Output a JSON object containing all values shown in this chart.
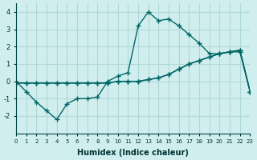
{
  "xlabel": "Humidex (Indice chaleur)",
  "ylabel": "",
  "bg_color": "#d0eeee",
  "grid_color": "#b0d8d8",
  "line_color": "#006666",
  "curve1_x": [
    0,
    1,
    2,
    3,
    4,
    5,
    6,
    7,
    8,
    9,
    10,
    11,
    12,
    13,
    14,
    15,
    16,
    17,
    18,
    19,
    20,
    21,
    22,
    23
  ],
  "curve1_y": [
    0.0,
    -0.6,
    -1.2,
    -1.7,
    -2.2,
    -1.3,
    -1.0,
    -1.0,
    -0.9,
    0.0,
    0.3,
    0.5,
    3.2,
    4.0,
    3.5,
    3.6,
    3.2,
    2.7,
    2.2,
    1.6,
    1.6,
    1.7,
    1.7,
    -0.6
  ],
  "curve2_x": [
    0,
    1,
    2,
    3,
    4,
    5,
    6,
    7,
    8,
    9,
    10,
    11,
    12,
    13,
    14,
    15,
    16,
    17,
    18,
    19,
    20,
    21,
    22,
    23
  ],
  "curve2_y": [
    -0.1,
    -0.1,
    -0.1,
    -0.1,
    -0.1,
    -0.1,
    -0.1,
    -0.1,
    -0.1,
    -0.1,
    0.0,
    0.0,
    0.0,
    0.1,
    0.2,
    0.4,
    0.7,
    1.0,
    1.2,
    1.4,
    1.6,
    1.7,
    1.8,
    -0.6
  ],
  "curve3_x": [
    0,
    1,
    2,
    3,
    4,
    5,
    6,
    7,
    8,
    9,
    10,
    11,
    12,
    13,
    14,
    15,
    16,
    17,
    18,
    19,
    20,
    21,
    22,
    23
  ],
  "curve3_y": [
    -0.1,
    -0.1,
    -0.1,
    -0.1,
    -0.1,
    -0.1,
    -0.1,
    -0.1,
    -0.1,
    -0.1,
    0.0,
    0.0,
    0.0,
    0.1,
    0.2,
    0.4,
    0.7,
    1.0,
    1.2,
    1.4,
    1.6,
    1.7,
    1.8,
    -0.6
  ],
  "xmin": 0,
  "xmax": 23,
  "ymin": -3,
  "ymax": 4.5,
  "yticks": [
    -2,
    -1,
    0,
    1,
    2,
    3,
    4
  ],
  "xticks": [
    0,
    1,
    2,
    3,
    4,
    5,
    6,
    7,
    8,
    9,
    10,
    11,
    12,
    13,
    14,
    15,
    16,
    17,
    18,
    19,
    20,
    21,
    22,
    23
  ]
}
